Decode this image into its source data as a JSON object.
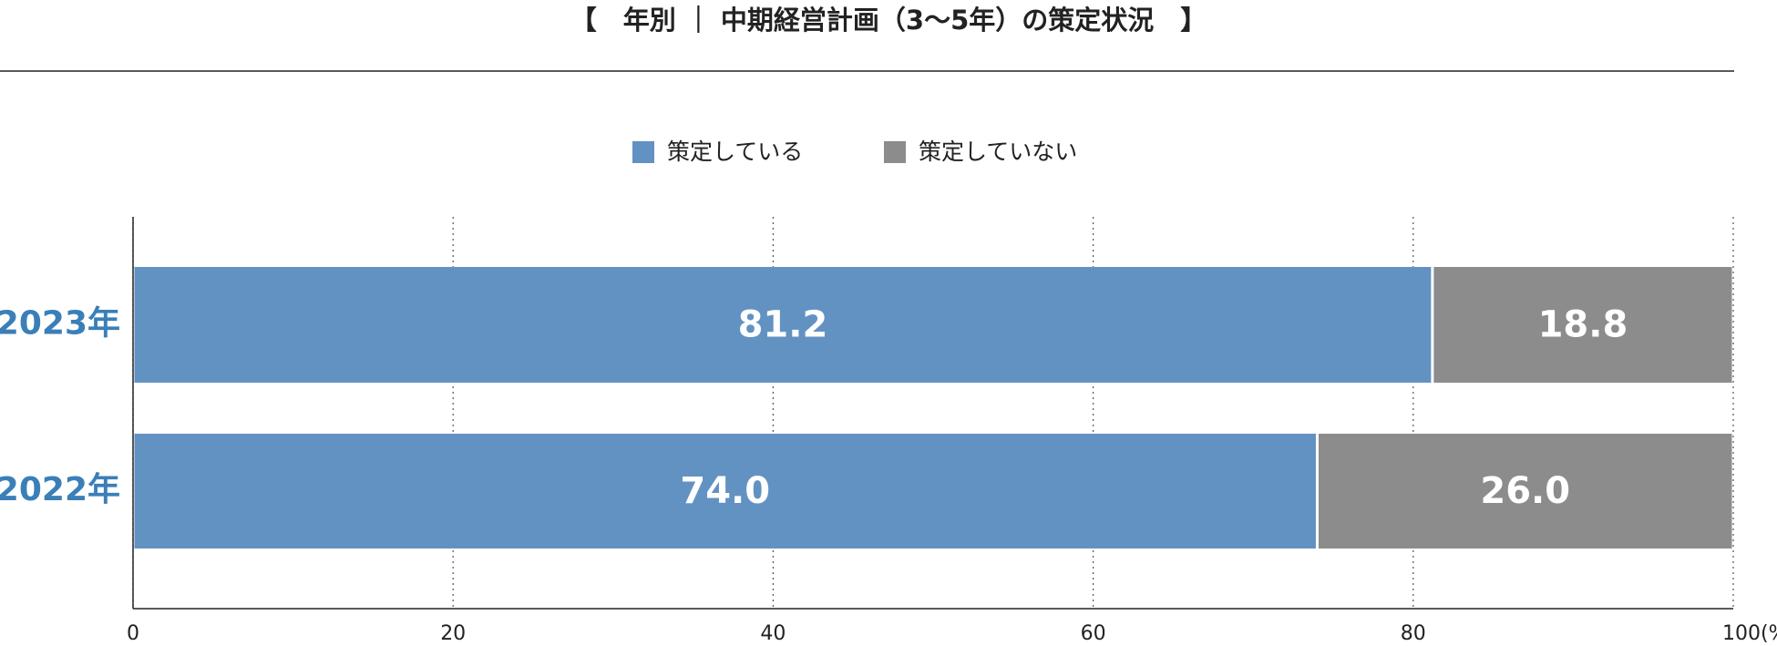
{
  "chart_data": {
    "type": "stacked_bar_horizontal",
    "title": "【　年別 ｜ 中期経営計画（3〜5年）の策定状況　】",
    "categories": [
      "2023年",
      "2022年"
    ],
    "series": [
      {
        "name": "策定している",
        "color": "#6292c2",
        "values": [
          81.2,
          74.0
        ],
        "value_labels": [
          "81.2",
          "74.0"
        ]
      },
      {
        "name": "策定していない",
        "color": "#8c8c8c",
        "values": [
          18.8,
          26.0
        ],
        "value_labels": [
          "18.8",
          "26.0"
        ]
      }
    ],
    "xlim": [
      0,
      100
    ],
    "xticks": [
      0,
      20,
      40,
      60,
      80,
      {
        "value": 100,
        "label": "100(%)"
      }
    ],
    "grid": true,
    "legend": "top"
  }
}
